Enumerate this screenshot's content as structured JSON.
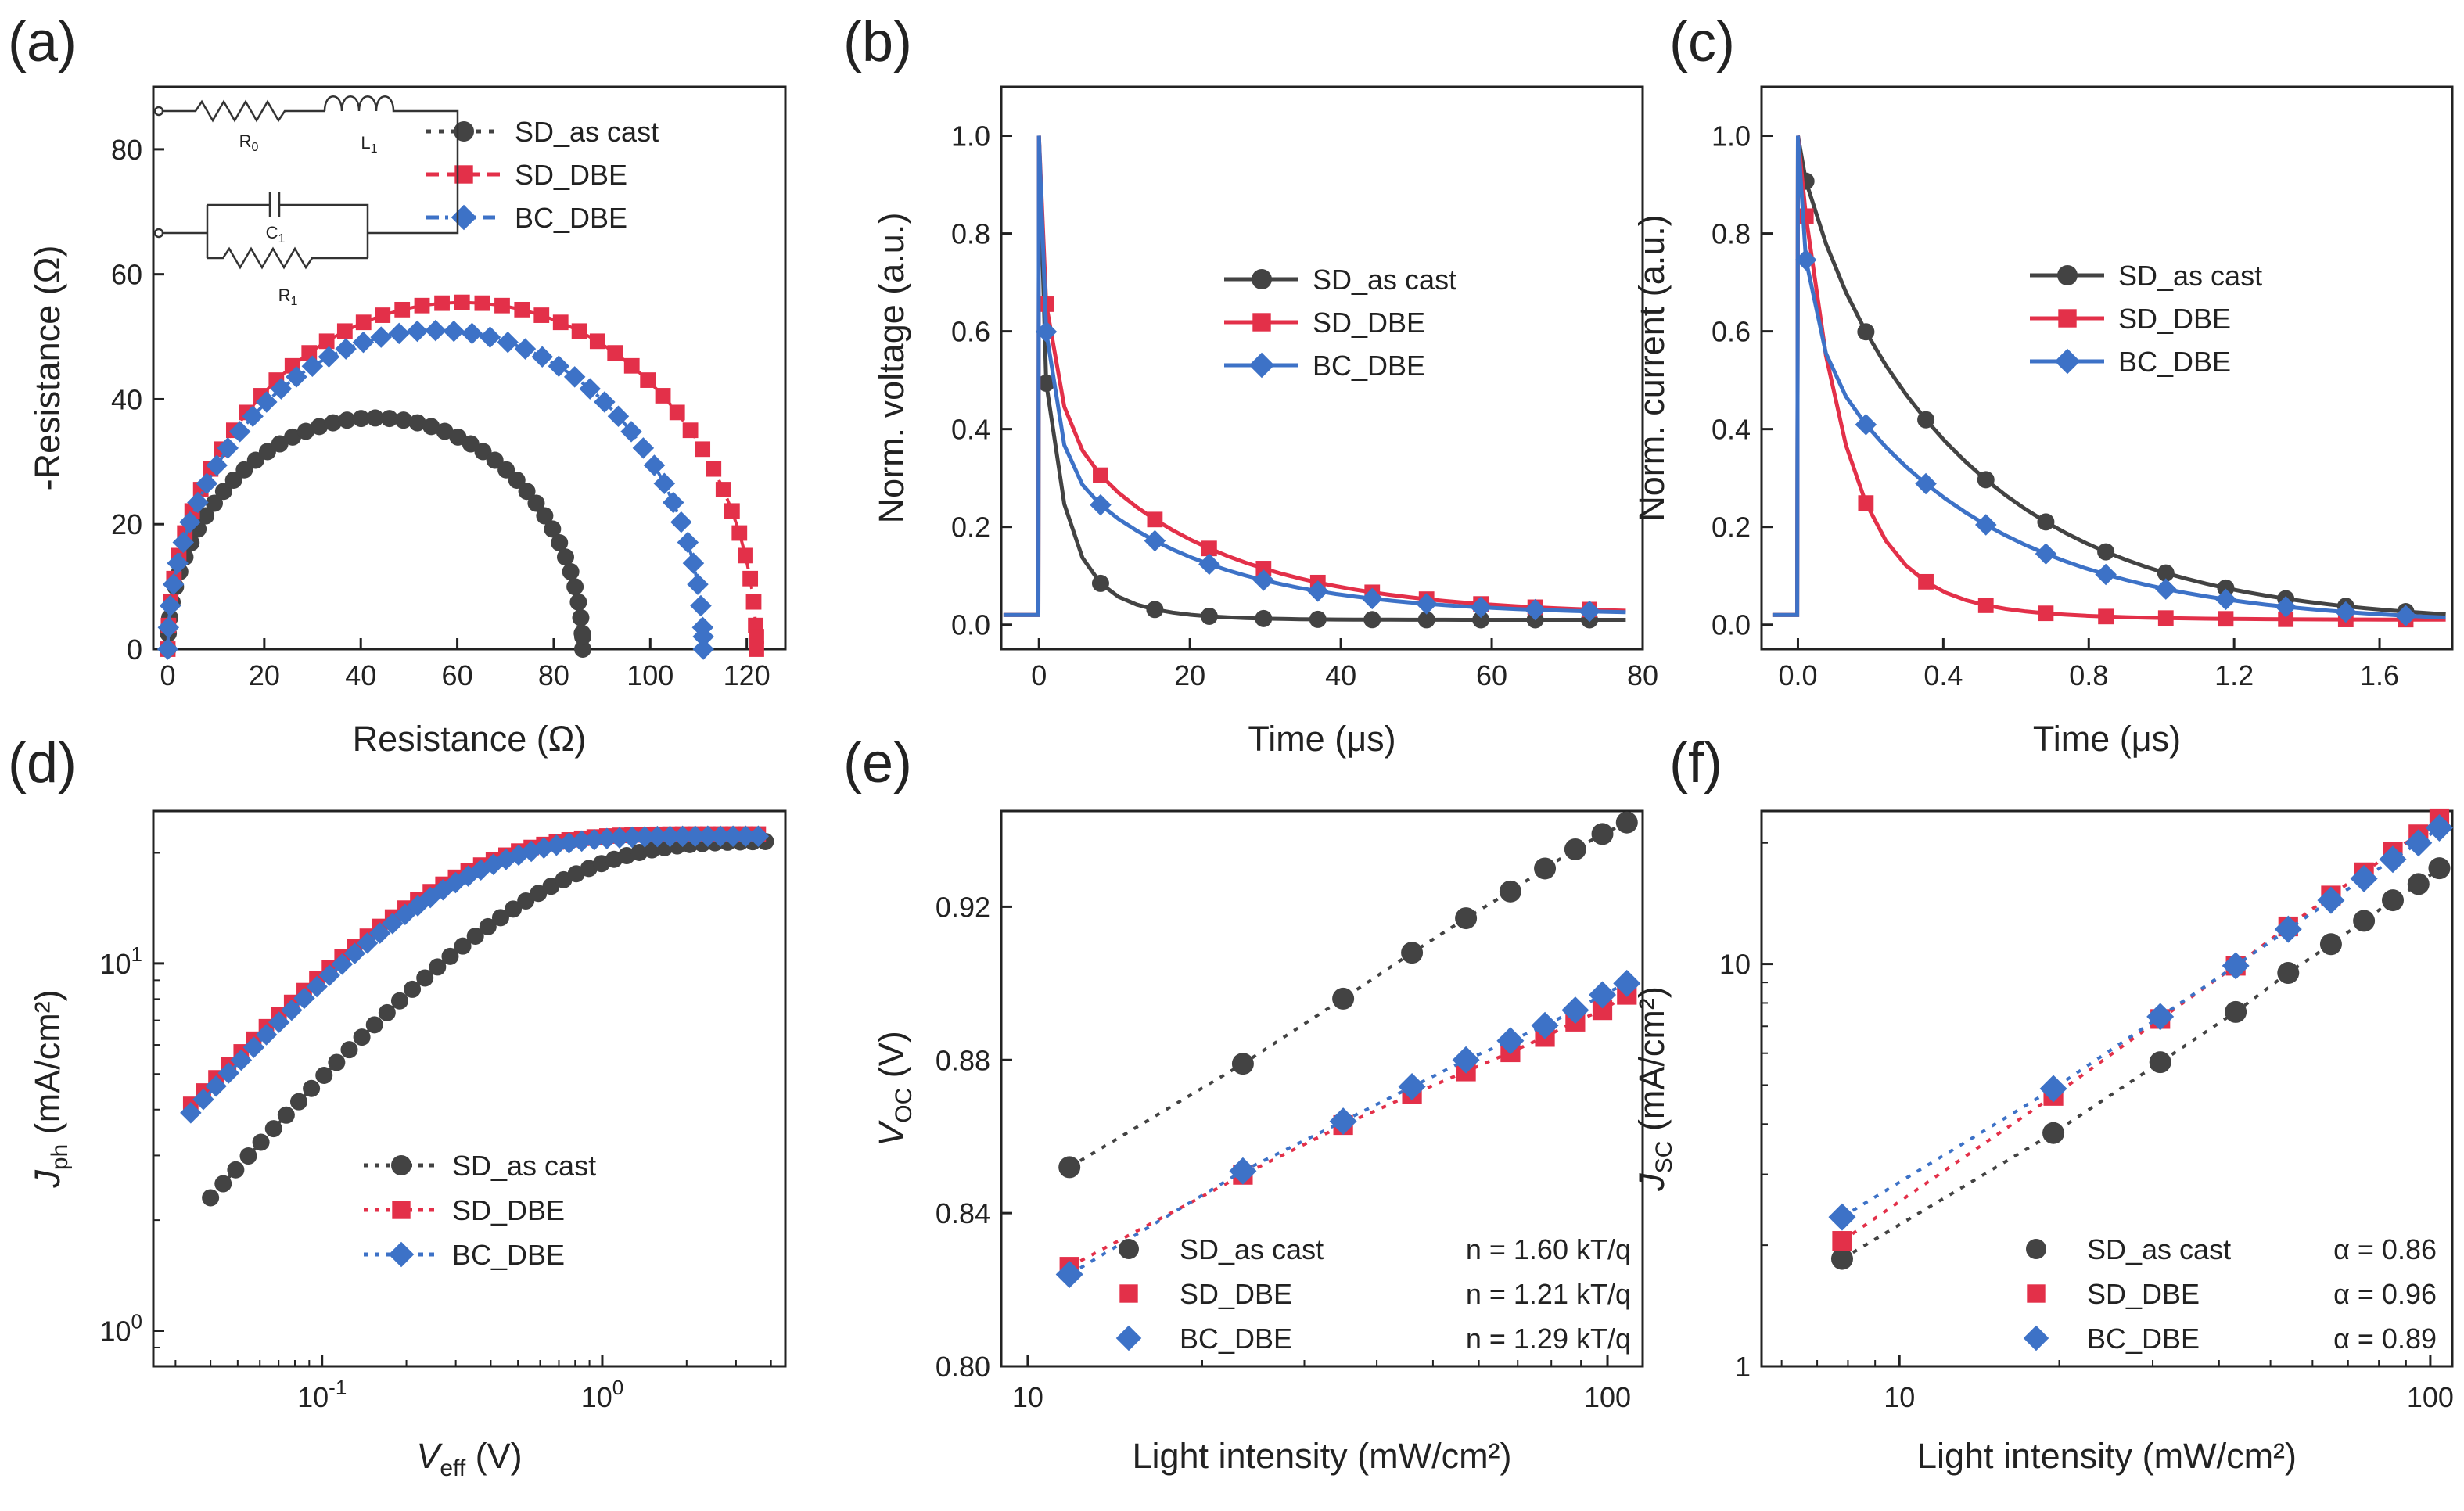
{
  "colors": {
    "sd_as_cast": "#434343",
    "sd_dbe": "#e33049",
    "bc_dbe": "#3d72c7"
  },
  "panels": [
    {
      "id": "a",
      "panel_label": "(a)",
      "type": "line",
      "xlabel": "Resistance (Ω)",
      "ylabel": "-Resistance (Ω)",
      "xlim": [
        -3,
        128
      ],
      "ylim": [
        0,
        90
      ],
      "xticks": [
        0,
        20,
        40,
        60,
        80,
        100,
        120
      ],
      "yticks": [
        0,
        20,
        40,
        60,
        80
      ],
      "circuit": {
        "r0": "R0",
        "l1": "L1",
        "c1": "C1",
        "r1": "R1"
      },
      "series": [
        {
          "name": "SD_as cast",
          "color": "#434343",
          "marker": "circle",
          "style": "dot",
          "semi": {
            "center": 43,
            "radius": 43,
            "top": 37
          }
        },
        {
          "name": "SD_DBE",
          "color": "#e33049",
          "marker": "square",
          "style": "dash",
          "semi": {
            "center": 61,
            "radius": 61,
            "top": 55.5
          }
        },
        {
          "name": "BC_DBE",
          "color": "#3d72c7",
          "marker": "diamond",
          "style": "dashdot",
          "semi": {
            "center": 55.5,
            "radius": 55.5,
            "top": 51
          }
        }
      ]
    },
    {
      "id": "b",
      "panel_label": "(b)",
      "type": "line",
      "xlabel": "Time (μs)",
      "ylabel": "Norm. voltage (a.u.)",
      "xlim": [
        -5,
        80
      ],
      "ylim": [
        -0.05,
        1.1
      ],
      "xticks": [
        0,
        20,
        40,
        60,
        80
      ],
      "yticks": [
        0.0,
        0.2,
        0.4,
        0.6,
        0.8,
        1.0
      ],
      "series": [
        {
          "name": "SD_as cast",
          "color": "#434343",
          "marker": "circle",
          "decay": {
            "fast": 0.48,
            "tf": 2.5,
            "slow": 0.18,
            "ts": 7
          },
          "base": 0.01
        },
        {
          "name": "SD_DBE",
          "color": "#e33049",
          "marker": "square",
          "decay": {
            "fast": 0.38,
            "tf": 2.0,
            "slow": 0.42,
            "ts": 20
          },
          "base": 0.02
        },
        {
          "name": "BC_DBE",
          "color": "#3d72c7",
          "marker": "diamond",
          "decay": {
            "fast": 0.45,
            "tf": 1.7,
            "slow": 0.34,
            "ts": 19
          },
          "base": 0.02
        }
      ]
    },
    {
      "id": "c",
      "panel_label": "(c)",
      "type": "line",
      "xlabel": "Time (μs)",
      "ylabel": "Norm. current (a.u.)",
      "xlim": [
        -0.1,
        1.8
      ],
      "ylim": [
        -0.05,
        1.1
      ],
      "xticks": [
        0.0,
        0.4,
        0.8,
        1.2,
        1.6
      ],
      "tickfmt": 1,
      "yticks": [
        0.0,
        0.2,
        0.4,
        0.6,
        0.8,
        1.0
      ],
      "series": [
        {
          "name": "SD_as cast",
          "color": "#434343",
          "marker": "circle",
          "decay": {
            "fast": 0.1,
            "tf": 0.08,
            "slow": 0.87,
            "ts": 0.48
          },
          "base": 0.0
        },
        {
          "name": "SD_DBE",
          "color": "#e33049",
          "marker": "square",
          "decay": {
            "fast": 0.88,
            "tf": 0.12,
            "slow": 0.1,
            "ts": 0.3
          },
          "base": 0.01
        },
        {
          "name": "BC_DBE",
          "color": "#3d72c7",
          "marker": "diamond",
          "decay": {
            "fast": 0.3,
            "tf": 0.04,
            "slow": 0.6,
            "ts": 0.48
          },
          "base": 0.0
        }
      ]
    },
    {
      "id": "d",
      "panel_label": "(d)",
      "type": "scatter",
      "xlabel": "V_eff (V)",
      "ylabel": "J_ph (mA/cm²)",
      "xlog": true,
      "ylog": true,
      "xlim": [
        0.025,
        4.5
      ],
      "ylim": [
        0.8,
        26
      ],
      "xticks": [
        0.1,
        1
      ],
      "yticks": [
        1,
        10
      ],
      "series": [
        {
          "name": "SD_as cast",
          "color": "#434343",
          "marker": "circle",
          "curve": {
            "jsat": 21.5,
            "vc": 0.45,
            "n": 1.6
          }
        },
        {
          "name": "SD_DBE",
          "color": "#e33049",
          "marker": "square",
          "curve": {
            "jsat": 22.5,
            "vc": 0.2,
            "n": 1.7
          }
        },
        {
          "name": "BC_DBE",
          "color": "#3d72c7",
          "marker": "diamond",
          "curve": {
            "jsat": 22.2,
            "vc": 0.21,
            "n": 1.7
          }
        }
      ]
    },
    {
      "id": "e",
      "panel_label": "(e)",
      "type": "scatter",
      "xlabel": "Light intensity (mW/cm²)",
      "ylabel": "V_OC (V)",
      "xlog": true,
      "xlim": [
        9,
        115
      ],
      "ylim": [
        0.8,
        0.945
      ],
      "xticks": [
        10,
        100
      ],
      "yticks": [
        0.8,
        0.84,
        0.88,
        0.92
      ],
      "legend_values": [
        "n = 1.60 kT/q",
        "n = 1.21 kT/q",
        "n = 1.29 kT/q"
      ],
      "series": [
        {
          "name": "SD_as cast",
          "color": "#434343",
          "marker": "circle",
          "x": [
            11.8,
            23.5,
            35,
            46,
            57,
            68,
            78,
            88,
            98,
            108
          ],
          "y": [
            0.852,
            0.879,
            0.896,
            0.908,
            0.917,
            0.924,
            0.93,
            0.935,
            0.939,
            0.942
          ]
        },
        {
          "name": "SD_DBE",
          "color": "#e33049",
          "marker": "square",
          "x": [
            11.8,
            23.5,
            35,
            46,
            57,
            68,
            78,
            88,
            98,
            108
          ],
          "y": [
            0.826,
            0.85,
            0.863,
            0.871,
            0.877,
            0.882,
            0.886,
            0.89,
            0.893,
            0.897
          ]
        },
        {
          "name": "BC_DBE",
          "color": "#3d72c7",
          "marker": "diamond",
          "x": [
            11.8,
            23.5,
            35,
            46,
            57,
            68,
            78,
            88,
            98,
            108
          ],
          "y": [
            0.824,
            0.851,
            0.864,
            0.873,
            0.88,
            0.885,
            0.889,
            0.893,
            0.897,
            0.9
          ]
        }
      ]
    },
    {
      "id": "f",
      "panel_label": "(f)",
      "type": "scatter",
      "xlabel": "Light intensity (mW/cm²)",
      "ylabel": "J_SC (mA/cm²)",
      "xlog": true,
      "ylog": true,
      "xlim": [
        5.5,
        110
      ],
      "ylim": [
        1,
        24
      ],
      "xticks": [
        10,
        100
      ],
      "yticks": [
        1,
        10
      ],
      "legend_values": [
        "α = 0.86",
        "α = 0.96",
        "α = 0.89"
      ],
      "series": [
        {
          "name": "SD_as cast",
          "color": "#434343",
          "marker": "circle",
          "x": [
            7.8,
            19.5,
            31,
            43,
            54,
            65,
            75,
            85,
            95,
            104
          ],
          "y": [
            1.85,
            3.8,
            5.7,
            7.6,
            9.5,
            11.2,
            12.8,
            14.4,
            15.8,
            17.3
          ]
        },
        {
          "name": "SD_DBE",
          "color": "#e33049",
          "marker": "square",
          "x": [
            7.8,
            19.5,
            31,
            43,
            54,
            65,
            75,
            85,
            95,
            104
          ],
          "y": [
            2.05,
            4.7,
            7.3,
            9.9,
            12.4,
            14.8,
            16.9,
            19.0,
            21.0,
            23.0
          ]
        },
        {
          "name": "BC_DBE",
          "color": "#3d72c7",
          "marker": "diamond",
          "x": [
            7.8,
            19.5,
            31,
            43,
            54,
            65,
            75,
            85,
            95,
            104
          ],
          "y": [
            2.35,
            4.9,
            7.4,
            9.9,
            12.2,
            14.4,
            16.3,
            18.2,
            20.0,
            21.8
          ]
        }
      ]
    }
  ]
}
